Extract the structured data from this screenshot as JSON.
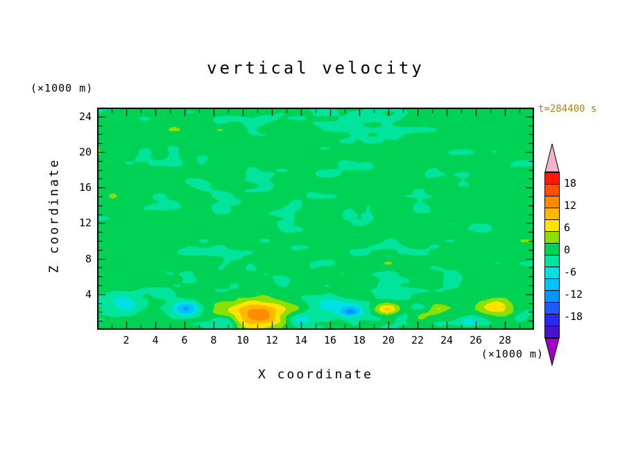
{
  "chart_data": {
    "type": "heatmap",
    "subtype": "filled-contour",
    "title": "vertical velocity",
    "time_label": "t=284400 s",
    "time_label_color": "#a98600",
    "xlabel": "X coordinate",
    "ylabel": "Z coordinate",
    "x_unit": "(×1000 m)",
    "y_unit": "(×1000 m)",
    "axes": {
      "x": {
        "min": 0,
        "max": 30,
        "major": 2,
        "minor": 1,
        "tick_labels": [
          2,
          4,
          6,
          8,
          10,
          12,
          14,
          16,
          18,
          20,
          22,
          24,
          26,
          28
        ]
      },
      "z": {
        "min": 0,
        "max": 25,
        "major": 4,
        "minor": 1,
        "tick_labels": [
          4,
          8,
          12,
          16,
          20,
          24
        ]
      }
    },
    "contour": {
      "interval": 3,
      "min_level": -21,
      "max_level": 21,
      "band_colors": [
        "#4614c8",
        "#2828f0",
        "#1e5aff",
        "#0096ff",
        "#00c3ff",
        "#00e1e1",
        "#00e59b",
        "#00d255",
        "#8ce000",
        "#ffe400",
        "#ffb900",
        "#ff8c00",
        "#ff5000",
        "#ff1900"
      ],
      "under_color": "#a000c8",
      "over_color": "#f2b4c8",
      "colorbar_tick_values": [
        18,
        12,
        6,
        0,
        -6,
        -12,
        -18
      ],
      "colorbar_tick_labels": [
        "18",
        "12",
        "6",
        "0",
        "-6",
        "-12",
        "-18"
      ]
    },
    "field": {
      "background_bias": 0.9,
      "noise_amplitude": 2.6,
      "noise_seed": 7.3,
      "octaves": [
        {
          "sx": 0.45,
          "sy": 0.8,
          "weight": 0.6
        },
        {
          "sx": 0.95,
          "sy": 1.6,
          "weight": 0.4
        }
      ],
      "bottom_boost": {
        "amplitude": 2.0,
        "decay": 3.5,
        "sx": 0.8,
        "sy": 1.2
      },
      "features": [
        {
          "x": 11.0,
          "z": 1.8,
          "amp": 13.0,
          "rx": 2.0,
          "rz": 1.5
        },
        {
          "x": 6.1,
          "z": 2.4,
          "amp": -11.0,
          "rx": 0.9,
          "rz": 0.8
        },
        {
          "x": 1.8,
          "z": 3.0,
          "amp": -5.0,
          "rx": 1.2,
          "rz": 1.2
        },
        {
          "x": 8.8,
          "z": 0.8,
          "amp": -5.0,
          "rx": 0.7,
          "rz": 0.7
        },
        {
          "x": 13.9,
          "z": 0.9,
          "amp": -5.0,
          "rx": 0.7,
          "rz": 0.6
        },
        {
          "x": 16.2,
          "z": 2.6,
          "amp": -6.0,
          "rx": 1.7,
          "rz": 1.2
        },
        {
          "x": 17.4,
          "z": 2.0,
          "amp": -7.0,
          "rx": 0.7,
          "rz": 0.6
        },
        {
          "x": 19.9,
          "z": 2.3,
          "amp": 9.0,
          "rx": 0.8,
          "rz": 0.7
        },
        {
          "x": 23.4,
          "z": 2.4,
          "amp": 5.0,
          "rx": 0.6,
          "rz": 0.5
        },
        {
          "x": 25.5,
          "z": 1.0,
          "amp": -4.5,
          "rx": 0.8,
          "rz": 0.6
        },
        {
          "x": 27.4,
          "z": 2.5,
          "amp": 8.0,
          "rx": 1.3,
          "rz": 0.8
        },
        {
          "x": 29.0,
          "z": 1.2,
          "amp": -4.0,
          "rx": 0.8,
          "rz": 0.6
        }
      ]
    }
  }
}
